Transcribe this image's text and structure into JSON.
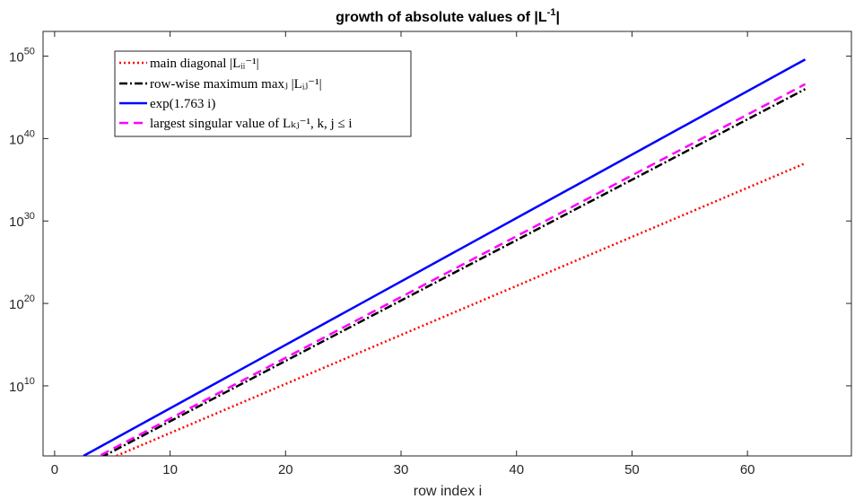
{
  "chart_data": {
    "type": "line",
    "title_main": "growth of absolute values of |L",
    "title_sup": "-1",
    "title_tail": "|",
    "xlabel": "row index i",
    "ylabel": "",
    "xlim": [
      -1,
      69
    ],
    "ylim_exp": [
      1.5,
      53
    ],
    "yscale": "log",
    "grid": false,
    "legend_position": "top-left",
    "xticks": [
      0,
      10,
      20,
      30,
      40,
      50,
      60
    ],
    "yticks": [
      {
        "base": "10",
        "exp": "10",
        "value": 10
      },
      {
        "base": "10",
        "exp": "20",
        "value": 20
      },
      {
        "base": "10",
        "exp": "30",
        "value": 30
      },
      {
        "base": "10",
        "exp": "40",
        "value": 40
      },
      {
        "base": "10",
        "exp": "50",
        "value": 50
      }
    ],
    "series": [
      {
        "name": "main diagonal |L_ii^-1|",
        "legend_text": "main diagonal |Lᵢᵢ⁻¹|",
        "color": "#ff0000",
        "style": "dotted",
        "x": [
          5,
          65
        ],
        "log10_y": [
          1.3,
          37.0
        ]
      },
      {
        "name": "row-wise maximum max_j |L_ij^-1|",
        "legend_text": "row-wise maximum maxⱼ |Lᵢⱼ⁻¹|",
        "color": "#000000",
        "style": "dashdot",
        "x": [
          4,
          65
        ],
        "log10_y": [
          1.3,
          46.0
        ]
      },
      {
        "name": "exp(1.763 i)",
        "legend_text": "exp(1.763 i)",
        "color": "#0000ff",
        "style": "solid",
        "x": [
          2.5,
          65
        ],
        "log10_y": [
          1.5,
          49.6
        ]
      },
      {
        "name": "largest singular value of L_kj^-1, k,j ≤ i",
        "legend_text": "largest singular value of Lₖⱼ⁻¹, k, j ≤ i",
        "color": "#ff00ff",
        "style": "dashed",
        "x": [
          4,
          65
        ],
        "log10_y": [
          1.6,
          46.6
        ]
      }
    ]
  }
}
